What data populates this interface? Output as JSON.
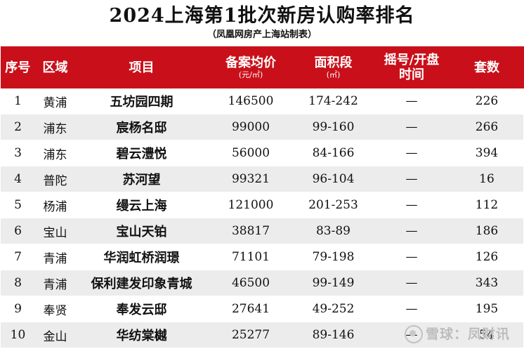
{
  "title": "2024上海第1批次新房认购率排名",
  "subtitle": "（凤凰网房产上海站制表）",
  "header": {
    "rank": "序号",
    "district": "区域",
    "project": "项目",
    "price": "备案均价",
    "price_unit": "(元/㎡)",
    "area": "面积段",
    "area_unit": "(㎡)",
    "lottery": "摇号/开盘",
    "lottery_sub": "时间",
    "units": "套数"
  },
  "rows": [
    {
      "rank": "1",
      "district": "黄浦",
      "project": "五坊园四期",
      "price": "146500",
      "area": "174-242",
      "lottery": "—",
      "units": "226"
    },
    {
      "rank": "2",
      "district": "浦东",
      "project": "宸杨名邸",
      "price": "99000",
      "area": "99-160",
      "lottery": "—",
      "units": "266"
    },
    {
      "rank": "3",
      "district": "浦东",
      "project": "碧云澧悦",
      "price": "56000",
      "area": "84-166",
      "lottery": "—",
      "units": "394"
    },
    {
      "rank": "4",
      "district": "普陀",
      "project": "苏河望",
      "price": "99321",
      "area": "96-104",
      "lottery": "—",
      "units": "16"
    },
    {
      "rank": "5",
      "district": "杨浦",
      "project": "缦云上海",
      "price": "121000",
      "area": "201-253",
      "lottery": "—",
      "units": "112"
    },
    {
      "rank": "6",
      "district": "宝山",
      "project": "宝山天铂",
      "price": "38817",
      "area": "83-89",
      "lottery": "—",
      "units": "186"
    },
    {
      "rank": "7",
      "district": "青浦",
      "project": "华润虹桥润璟",
      "price": "71101",
      "area": "79-198",
      "lottery": "—",
      "units": "126"
    },
    {
      "rank": "8",
      "district": "青浦",
      "project": "保利建发印象青城",
      "price": "46500",
      "area": "99-149",
      "lottery": "—",
      "units": "343"
    },
    {
      "rank": "9",
      "district": "奉贤",
      "project": "奉发云邸",
      "price": "27641",
      "area": "49-252",
      "lottery": "—",
      "units": "195"
    },
    {
      "rank": "10",
      "district": "金山",
      "project": "华纺棠樾",
      "price": "25277",
      "area": "89-146",
      "lottery": "—",
      "units": "54"
    }
  ],
  "watermark": "雪球：凤财讯"
}
